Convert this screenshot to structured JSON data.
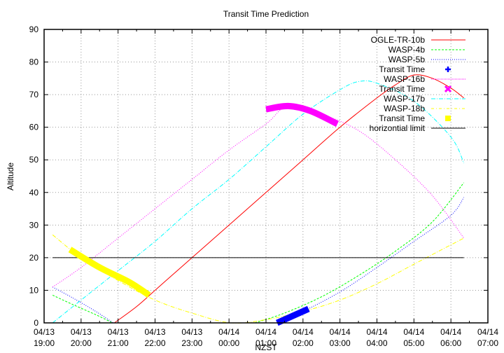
{
  "chart_data": {
    "type": "line",
    "title": "Transit Time Prediction",
    "xlabel": "NZST",
    "ylabel": "Altitude",
    "ylim": [
      0,
      90
    ],
    "yticks": [
      0,
      10,
      20,
      30,
      40,
      50,
      60,
      70,
      80,
      90
    ],
    "xlim_hours_from_start": [
      0,
      12
    ],
    "xticks": [
      {
        "date": "04/13",
        "time": "19:00"
      },
      {
        "date": "04/13",
        "time": "20:00"
      },
      {
        "date": "04/13",
        "time": "21:00"
      },
      {
        "date": "04/13",
        "time": "22:00"
      },
      {
        "date": "04/13",
        "time": "23:00"
      },
      {
        "date": "04/14",
        "time": "00:00"
      },
      {
        "date": "04/14",
        "time": "01:00"
      },
      {
        "date": "04/14",
        "time": "02:00"
      },
      {
        "date": "04/14",
        "time": "03:00"
      },
      {
        "date": "04/14",
        "time": "04:00"
      },
      {
        "date": "04/14",
        "time": "05:00"
      },
      {
        "date": "04/14",
        "time": "06:00"
      },
      {
        "date": "04/14",
        "time": "07:00"
      }
    ],
    "grid": true,
    "legend_position": "top-right inside",
    "series": [
      {
        "name": "OGLE-TR-10b",
        "color": "#ff0000",
        "style": "solid",
        "points": [
          [
            1.9,
            0
          ],
          [
            2.5,
            5
          ],
          [
            3,
            10
          ],
          [
            3.5,
            15
          ],
          [
            4.0,
            20
          ],
          [
            5,
            30
          ],
          [
            6,
            40
          ],
          [
            7,
            50
          ],
          [
            8,
            60
          ],
          [
            9,
            69
          ],
          [
            9.5,
            73
          ],
          [
            10,
            76
          ],
          [
            10.5,
            75
          ],
          [
            11,
            72
          ],
          [
            11.35,
            69
          ]
        ]
      },
      {
        "name": "WASP-4b",
        "color": "#00ff00",
        "style": "dashed",
        "points": [
          [
            0.23,
            8.5
          ],
          [
            0.8,
            5.5
          ],
          [
            1.4,
            2.5
          ],
          [
            1.85,
            0
          ],
          [
            5.7,
            0
          ],
          [
            6.5,
            3
          ],
          [
            7.5,
            8
          ],
          [
            8.5,
            14.5
          ],
          [
            9.5,
            22
          ],
          [
            10.5,
            31
          ],
          [
            11.35,
            43
          ]
        ]
      },
      {
        "name": "WASP-5b",
        "color": "#0000ff",
        "style": "dotted",
        "points": [
          [
            0.23,
            11
          ],
          [
            0.8,
            7.5
          ],
          [
            1.4,
            3.5
          ],
          [
            1.87,
            0
          ],
          [
            6.3,
            0
          ],
          [
            7,
            3.5
          ],
          [
            8,
            9.5
          ],
          [
            9,
            17
          ],
          [
            10,
            25
          ],
          [
            11,
            33
          ],
          [
            11.35,
            38.5
          ]
        ]
      },
      {
        "name": "WASP-16b",
        "color": "#ff00ff",
        "style": "dotted",
        "points": [
          [
            0.23,
            11
          ],
          [
            1,
            17
          ],
          [
            2,
            26
          ],
          [
            3,
            35
          ],
          [
            4,
            44
          ],
          [
            5,
            53
          ],
          [
            6,
            61
          ],
          [
            6.6,
            66.5
          ],
          [
            7.5,
            64
          ],
          [
            8.5,
            59
          ],
          [
            9.5,
            50
          ],
          [
            10.5,
            39
          ],
          [
            11.35,
            26
          ]
        ]
      },
      {
        "name": "WASP-17b",
        "color": "#00ffff",
        "style": "dash-dot",
        "points": [
          [
            0.23,
            0
          ],
          [
            1,
            7
          ],
          [
            2,
            16
          ],
          [
            3,
            25
          ],
          [
            4,
            35
          ],
          [
            5,
            44
          ],
          [
            6,
            54
          ],
          [
            7,
            64
          ],
          [
            8,
            71.5
          ],
          [
            8.5,
            74
          ],
          [
            9,
            73.5
          ],
          [
            10,
            68
          ],
          [
            11,
            57
          ],
          [
            11.35,
            49
          ]
        ]
      },
      {
        "name": "WASP-18b",
        "color": "#ffff00",
        "style": "dash-dot",
        "points": [
          [
            0.23,
            27
          ],
          [
            1,
            20
          ],
          [
            2,
            13
          ],
          [
            3,
            7
          ],
          [
            4,
            3
          ],
          [
            5.05,
            0
          ],
          [
            6,
            1
          ],
          [
            7,
            3.5
          ],
          [
            8,
            7
          ],
          [
            9,
            12
          ],
          [
            10,
            18
          ],
          [
            11.35,
            26
          ]
        ]
      },
      {
        "name": "horizontial limit",
        "color": "#000000",
        "style": "solid",
        "points": [
          [
            0.23,
            20
          ],
          [
            11.35,
            20
          ]
        ]
      }
    ],
    "transits": [
      {
        "label": "Transit Time",
        "planet": "WASP-5b",
        "color": "#0000ff",
        "marker": "plus",
        "points": [
          [
            6.3,
            0
          ],
          [
            7.15,
            4.3
          ]
        ]
      },
      {
        "label": "Transit Time",
        "planet": "WASP-16b",
        "color": "#ff00ff",
        "marker": "cross",
        "points": [
          [
            6.0,
            65.5
          ],
          [
            6.6,
            66.5
          ],
          [
            7.2,
            65
          ],
          [
            7.93,
            61
          ]
        ]
      },
      {
        "label": "Transit Time",
        "planet": "WASP-18b",
        "color": "#ffff00",
        "marker": "square",
        "points": [
          [
            0.7,
            22.5
          ],
          [
            1.5,
            17
          ],
          [
            2.3,
            12.5
          ],
          [
            2.84,
            8.5
          ]
        ]
      }
    ],
    "legend": [
      {
        "label": "OGLE-TR-10b",
        "color": "#ff0000",
        "kind": "line",
        "dash": ""
      },
      {
        "label": "WASP-4b",
        "color": "#00ff00",
        "kind": "line",
        "dash": "3,2"
      },
      {
        "label": "WASP-5b",
        "color": "#0000ff",
        "kind": "line",
        "dash": "1,2"
      },
      {
        "label": "Transit Time",
        "color": "#0000ff",
        "kind": "plus"
      },
      {
        "label": "WASP-16b",
        "color": "#ff00ff",
        "kind": "line",
        "dash": "1,1"
      },
      {
        "label": "Transit Time",
        "color": "#ff00ff",
        "kind": "cross"
      },
      {
        "label": "WASP-17b",
        "color": "#00ffff",
        "kind": "line",
        "dash": "6,2,1,2"
      },
      {
        "label": "WASP-18b",
        "color": "#ffff00",
        "kind": "line",
        "dash": "4,3,1,3"
      },
      {
        "label": "Transit Time",
        "color": "#ffff00",
        "kind": "square"
      },
      {
        "label": "horizontial limit",
        "color": "#000000",
        "kind": "line",
        "dash": ""
      }
    ]
  }
}
